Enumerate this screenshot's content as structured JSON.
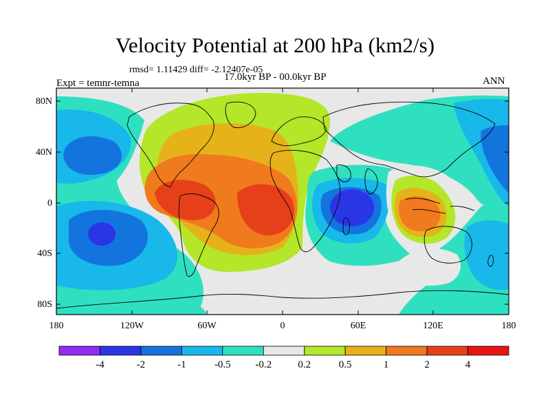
{
  "title": "Velocity Potential at 200 hPa (km2/s)",
  "stats_text": "rmsd= 1.11429 diff= -2.12407e-05",
  "period_text": "17.0kyr BP - 00.0kyr BP",
  "experiment_text": "Expt = temnr-temna",
  "season_text": "ANN",
  "axes": {
    "y_ticks": [
      "80N",
      "40N",
      "0",
      "40S",
      "80S"
    ],
    "x_ticks": [
      "180",
      "120W",
      "60W",
      "0",
      "60E",
      "120E",
      "180"
    ]
  },
  "colorbar": {
    "labels": [
      "-4",
      "-2",
      "-1",
      "-0.5",
      "-0.2",
      "0.2",
      "0.5",
      "1",
      "2",
      "4"
    ],
    "colors": [
      "#8f2cf0",
      "#2a35e6",
      "#1474de",
      "#18b8ea",
      "#2fe0c0",
      "#e8e8e8",
      "#b4e62a",
      "#e6b21a",
      "#f07a1e",
      "#e6401a",
      "#e81414"
    ]
  },
  "colors": {
    "background": "#e8e8e8",
    "coastline": "#000000"
  }
}
